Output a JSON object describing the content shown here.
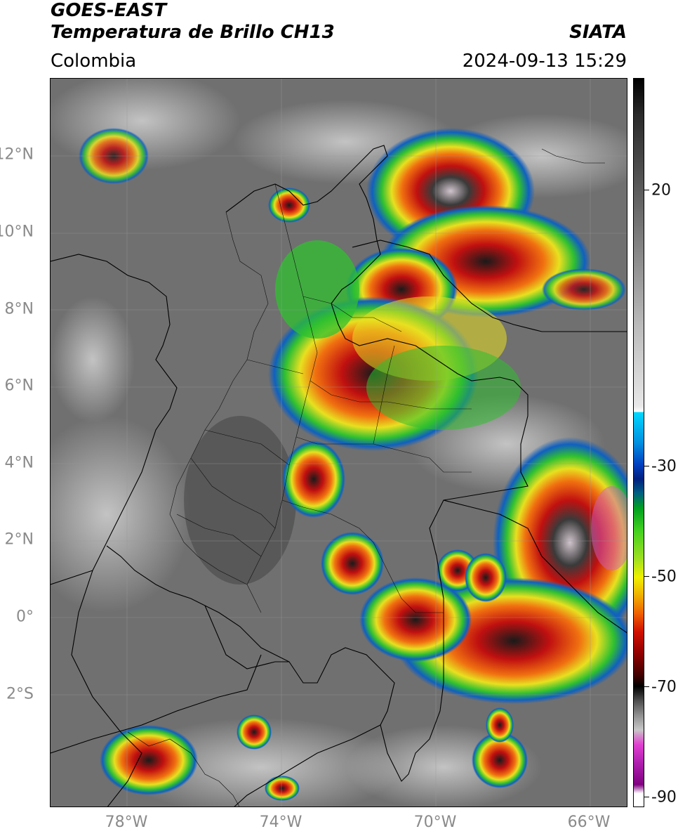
{
  "header": {
    "satellite": "GOES-EAST",
    "product": "Temperatura de Brillo CH13",
    "region": "Colombia",
    "source": "SIATA",
    "datetime": "2024-09-13 15:29"
  },
  "map": {
    "lat_labels": [
      "12°N",
      "10°N",
      "8°N",
      "6°N",
      "4°N",
      "2°N",
      "0°",
      "2°S"
    ],
    "lon_labels": [
      "78°W",
      "74°W",
      "70°W",
      "66°W"
    ],
    "extent": {
      "lon_min": -79.6,
      "lon_max": -64.6,
      "lat_min": -5.2,
      "lat_max": 13.7
    }
  },
  "colorbar": {
    "tick_labels": [
      "20",
      "-30",
      "-50",
      "-70",
      "-90"
    ],
    "range": [
      -92,
      35
    ]
  },
  "colors": {
    "background_cloud_free": "#6e6e6e",
    "cold_cloud_red": "#c01010",
    "cold_cloud_black": "#1a1a1a",
    "cold_cloud_yellow": "#e8e020",
    "cold_cloud_green": "#30c030",
    "cold_cloud_blue": "#1060c0",
    "coldest_pink": "#d060c0"
  }
}
